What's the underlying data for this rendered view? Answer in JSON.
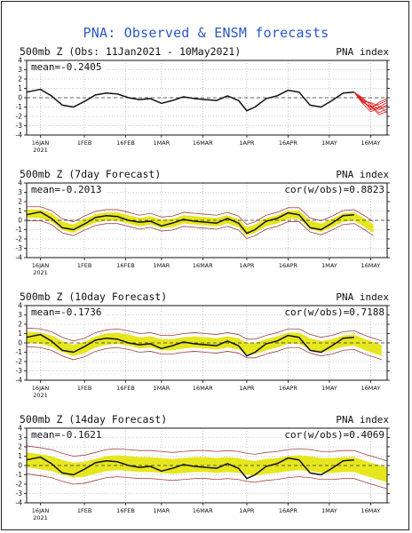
{
  "title": "PNA: Observed & ENSM forecasts",
  "colors": {
    "title": "#2a56c8",
    "observed": "#111111",
    "ensemble_forecast": "#e02020",
    "spread_band": "#e6e61e",
    "envelope": "#a04040",
    "zero_line": "#333333"
  },
  "chart_data": [
    {
      "type": "line",
      "title": "500mb Z (Obs: 11Jan2021 - 10May2021)",
      "index_label": "PNA index",
      "mean_label": "mean=-0.2405",
      "cor_label": "",
      "ylim": [
        -4,
        4
      ],
      "yticks": [
        -4,
        -3,
        -2,
        -1,
        0,
        1,
        2,
        3,
        4
      ],
      "x_range": [
        "2021-01-11",
        "2021-05-22"
      ],
      "xticks": [
        "16JAN",
        "1FEB",
        "16FEB",
        "1MAR",
        "16MAR",
        "1APR",
        "16APR",
        "1MAY",
        "16MAY"
      ],
      "xtick_year": "2021",
      "grid": true,
      "zero_line": "dashed",
      "observed": {
        "x": [
          "2021-01-11",
          "2021-01-16",
          "2021-01-20",
          "2021-01-24",
          "2021-01-28",
          "2021-02-01",
          "2021-02-05",
          "2021-02-09",
          "2021-02-13",
          "2021-02-17",
          "2021-02-21",
          "2021-02-25",
          "2021-03-01",
          "2021-03-05",
          "2021-03-09",
          "2021-03-13",
          "2021-03-17",
          "2021-03-21",
          "2021-03-25",
          "2021-03-29",
          "2021-04-01",
          "2021-04-04",
          "2021-04-08",
          "2021-04-12",
          "2021-04-16",
          "2021-04-20",
          "2021-04-24",
          "2021-04-28",
          "2021-05-02",
          "2021-05-06",
          "2021-05-10"
        ],
        "y": [
          0.6,
          0.9,
          0.2,
          -0.8,
          -1.0,
          -0.4,
          0.3,
          0.5,
          0.4,
          0.0,
          -0.2,
          -0.1,
          -0.6,
          -0.3,
          0.1,
          -0.1,
          -0.2,
          -0.3,
          0.2,
          -0.3,
          -1.4,
          -1.0,
          -0.1,
          0.2,
          0.8,
          0.6,
          -0.8,
          -1.0,
          -0.3,
          0.5,
          0.6
        ]
      },
      "ensemble": {
        "x": [
          "2021-05-10",
          "2021-05-13",
          "2021-05-16",
          "2021-05-19",
          "2021-05-22"
        ],
        "members": [
          [
            0.6,
            -0.4,
            -1.0,
            -0.7,
            -0.3
          ],
          [
            0.6,
            -0.2,
            -0.6,
            -1.3,
            -0.9
          ],
          [
            0.6,
            -0.6,
            -1.5,
            -1.1,
            -0.8
          ],
          [
            0.6,
            0.0,
            -0.8,
            -1.6,
            -1.2
          ],
          [
            0.6,
            -0.3,
            -1.2,
            -0.5,
            -0.1
          ],
          [
            0.6,
            -0.5,
            -0.9,
            -1.8,
            -1.5
          ],
          [
            0.6,
            -0.1,
            -1.3,
            -1.0,
            -0.5
          ],
          [
            0.6,
            -0.4,
            -0.5,
            -0.9,
            -1.6
          ]
        ]
      }
    },
    {
      "type": "line",
      "title": "500mb Z (7day Forecast)",
      "index_label": "PNA index",
      "mean_label": "mean=-0.2013",
      "cor_label": "cor(w/obs)=0.8823",
      "ylim": [
        -4,
        4
      ],
      "yticks": [
        -4,
        -3,
        -2,
        -1,
        0,
        1,
        2,
        3,
        4
      ],
      "x_range": [
        "2021-01-11",
        "2021-05-22"
      ],
      "xticks": [
        "16JAN",
        "1FEB",
        "16FEB",
        "1MAR",
        "16MAR",
        "1APR",
        "16APR",
        "1MAY",
        "16MAY"
      ],
      "xtick_year": "2021",
      "grid": true,
      "zero_line": "dashed",
      "forecast": {
        "x": [
          "2021-01-11",
          "2021-01-16",
          "2021-01-20",
          "2021-01-24",
          "2021-01-28",
          "2021-02-01",
          "2021-02-05",
          "2021-02-09",
          "2021-02-13",
          "2021-02-17",
          "2021-02-21",
          "2021-02-25",
          "2021-03-01",
          "2021-03-05",
          "2021-03-09",
          "2021-03-13",
          "2021-03-17",
          "2021-03-21",
          "2021-03-25",
          "2021-03-29",
          "2021-04-01",
          "2021-04-04",
          "2021-04-08",
          "2021-04-12",
          "2021-04-16",
          "2021-04-20",
          "2021-04-24",
          "2021-04-28",
          "2021-05-02",
          "2021-05-06",
          "2021-05-10",
          "2021-05-14",
          "2021-05-17"
        ],
        "mean": [
          0.7,
          0.7,
          0.3,
          -0.6,
          -0.9,
          -0.3,
          0.2,
          0.4,
          0.4,
          0.1,
          -0.2,
          0.0,
          -0.4,
          -0.3,
          0.1,
          0.0,
          -0.1,
          -0.2,
          0.1,
          -0.3,
          -1.2,
          -0.9,
          -0.2,
          0.1,
          0.6,
          0.6,
          -0.5,
          -0.8,
          -0.3,
          0.3,
          0.4,
          -0.3,
          -0.9
        ],
        "band_halfwidth": 0.45,
        "envelope_halfwidth": 0.75
      },
      "observed": {
        "x": [
          "2021-01-11",
          "2021-01-16",
          "2021-01-20",
          "2021-01-24",
          "2021-01-28",
          "2021-02-01",
          "2021-02-05",
          "2021-02-09",
          "2021-02-13",
          "2021-02-17",
          "2021-02-21",
          "2021-02-25",
          "2021-03-01",
          "2021-03-05",
          "2021-03-09",
          "2021-03-13",
          "2021-03-17",
          "2021-03-21",
          "2021-03-25",
          "2021-03-29",
          "2021-04-01",
          "2021-04-04",
          "2021-04-08",
          "2021-04-12",
          "2021-04-16",
          "2021-04-20",
          "2021-04-24",
          "2021-04-28",
          "2021-05-02",
          "2021-05-06",
          "2021-05-10"
        ],
        "y": [
          0.6,
          0.9,
          0.2,
          -0.8,
          -1.0,
          -0.4,
          0.3,
          0.5,
          0.4,
          0.0,
          -0.2,
          -0.1,
          -0.6,
          -0.3,
          0.1,
          -0.1,
          -0.2,
          -0.3,
          0.2,
          -0.3,
          -1.4,
          -1.0,
          -0.1,
          0.2,
          0.8,
          0.6,
          -0.8,
          -1.0,
          -0.3,
          0.5,
          0.6
        ]
      }
    },
    {
      "type": "line",
      "title": "500mb Z (10day Forecast)",
      "index_label": "PNA index",
      "mean_label": "mean=-0.1736",
      "cor_label": "cor(w/obs)=0.7188",
      "ylim": [
        -4,
        4
      ],
      "yticks": [
        -4,
        -3,
        -2,
        -1,
        0,
        1,
        2,
        3,
        4
      ],
      "x_range": [
        "2021-01-11",
        "2021-05-22"
      ],
      "xticks": [
        "16JAN",
        "1FEB",
        "16FEB",
        "1MAR",
        "16MAR",
        "1APR",
        "16APR",
        "1MAY",
        "16MAY"
      ],
      "xtick_year": "2021",
      "grid": true,
      "zero_line": "dashed",
      "forecast": {
        "x": [
          "2021-01-11",
          "2021-01-16",
          "2021-01-20",
          "2021-01-24",
          "2021-01-28",
          "2021-02-01",
          "2021-02-05",
          "2021-02-09",
          "2021-02-13",
          "2021-02-17",
          "2021-02-21",
          "2021-02-25",
          "2021-03-01",
          "2021-03-05",
          "2021-03-09",
          "2021-03-13",
          "2021-03-17",
          "2021-03-21",
          "2021-03-25",
          "2021-03-29",
          "2021-04-01",
          "2021-04-04",
          "2021-04-08",
          "2021-04-12",
          "2021-04-16",
          "2021-04-20",
          "2021-04-24",
          "2021-04-28",
          "2021-05-02",
          "2021-05-06",
          "2021-05-10",
          "2021-05-14",
          "2021-05-20"
        ],
        "mean": [
          0.6,
          0.5,
          0.2,
          -0.4,
          -0.8,
          -0.5,
          0.1,
          0.4,
          0.5,
          0.3,
          0.0,
          0.1,
          -0.2,
          -0.2,
          0.0,
          0.1,
          0.0,
          -0.1,
          0.1,
          -0.1,
          -0.6,
          -0.6,
          -0.2,
          0.1,
          0.5,
          0.5,
          -0.1,
          -0.4,
          -0.2,
          0.2,
          0.3,
          -0.2,
          -0.8
        ],
        "band_halfwidth": 0.6,
        "envelope_halfwidth": 1.0
      },
      "observed": {
        "x": [
          "2021-01-11",
          "2021-01-16",
          "2021-01-20",
          "2021-01-24",
          "2021-01-28",
          "2021-02-01",
          "2021-02-05",
          "2021-02-09",
          "2021-02-13",
          "2021-02-17",
          "2021-02-21",
          "2021-02-25",
          "2021-03-01",
          "2021-03-05",
          "2021-03-09",
          "2021-03-13",
          "2021-03-17",
          "2021-03-21",
          "2021-03-25",
          "2021-03-29",
          "2021-04-01",
          "2021-04-04",
          "2021-04-08",
          "2021-04-12",
          "2021-04-16",
          "2021-04-20",
          "2021-04-24",
          "2021-04-28",
          "2021-05-02",
          "2021-05-06",
          "2021-05-10"
        ],
        "y": [
          0.6,
          0.9,
          0.2,
          -0.8,
          -1.0,
          -0.4,
          0.3,
          0.5,
          0.4,
          0.0,
          -0.2,
          -0.1,
          -0.6,
          -0.3,
          0.1,
          -0.1,
          -0.2,
          -0.3,
          0.2,
          -0.3,
          -1.4,
          -1.0,
          -0.1,
          0.2,
          0.8,
          0.6,
          -0.8,
          -1.0,
          -0.3,
          0.5,
          0.6
        ]
      }
    },
    {
      "type": "line",
      "title": "500mb Z (14day Forecast)",
      "index_label": "PNA index",
      "mean_label": "mean=-0.1621",
      "cor_label": "cor(w/obs)=0.4069",
      "ylim": [
        -4,
        4
      ],
      "yticks": [
        -4,
        -3,
        -2,
        -1,
        0,
        1,
        2,
        3,
        4
      ],
      "x_range": [
        "2021-01-11",
        "2021-05-22"
      ],
      "xticks": [
        "16JAN",
        "1FEB",
        "16FEB",
        "1MAR",
        "16MAR",
        "1APR",
        "16APR",
        "1MAY",
        "16MAY"
      ],
      "xtick_year": "2021",
      "grid": true,
      "zero_line": "dashed",
      "forecast": {
        "x": [
          "2021-01-11",
          "2021-01-16",
          "2021-01-20",
          "2021-01-24",
          "2021-01-28",
          "2021-02-01",
          "2021-02-05",
          "2021-02-09",
          "2021-02-13",
          "2021-02-17",
          "2021-02-21",
          "2021-02-25",
          "2021-03-01",
          "2021-03-05",
          "2021-03-09",
          "2021-03-13",
          "2021-03-17",
          "2021-03-21",
          "2021-03-25",
          "2021-03-29",
          "2021-04-01",
          "2021-04-04",
          "2021-04-08",
          "2021-04-12",
          "2021-04-16",
          "2021-04-20",
          "2021-04-24",
          "2021-04-28",
          "2021-05-02",
          "2021-05-06",
          "2021-05-10",
          "2021-05-14",
          "2021-05-22"
        ],
        "mean": [
          0.6,
          0.4,
          0.2,
          -0.2,
          -0.5,
          -0.4,
          -0.1,
          0.2,
          0.3,
          0.2,
          0.1,
          0.1,
          0.0,
          -0.1,
          0.0,
          0.1,
          0.1,
          0.0,
          0.1,
          0.0,
          -0.2,
          -0.3,
          -0.1,
          0.0,
          0.2,
          0.3,
          0.2,
          0.0,
          0.0,
          0.1,
          0.1,
          -0.3,
          -1.0
        ],
        "band_halfwidth": 0.8,
        "envelope_halfwidth": 1.5
      },
      "observed": {
        "x": [
          "2021-01-11",
          "2021-01-16",
          "2021-01-20",
          "2021-01-24",
          "2021-01-28",
          "2021-02-01",
          "2021-02-05",
          "2021-02-09",
          "2021-02-13",
          "2021-02-17",
          "2021-02-21",
          "2021-02-25",
          "2021-03-01",
          "2021-03-05",
          "2021-03-09",
          "2021-03-13",
          "2021-03-17",
          "2021-03-21",
          "2021-03-25",
          "2021-03-29",
          "2021-04-01",
          "2021-04-04",
          "2021-04-08",
          "2021-04-12",
          "2021-04-16",
          "2021-04-20",
          "2021-04-24",
          "2021-04-28",
          "2021-05-02",
          "2021-05-06",
          "2021-05-10"
        ],
        "y": [
          0.6,
          0.9,
          0.2,
          -0.8,
          -1.0,
          -0.4,
          0.3,
          0.5,
          0.4,
          0.0,
          -0.2,
          -0.1,
          -0.6,
          -0.3,
          0.1,
          -0.1,
          -0.2,
          -0.3,
          0.2,
          -0.3,
          -1.4,
          -1.0,
          -0.1,
          0.2,
          0.8,
          0.6,
          -0.8,
          -1.0,
          -0.3,
          0.5,
          0.6
        ]
      }
    }
  ]
}
